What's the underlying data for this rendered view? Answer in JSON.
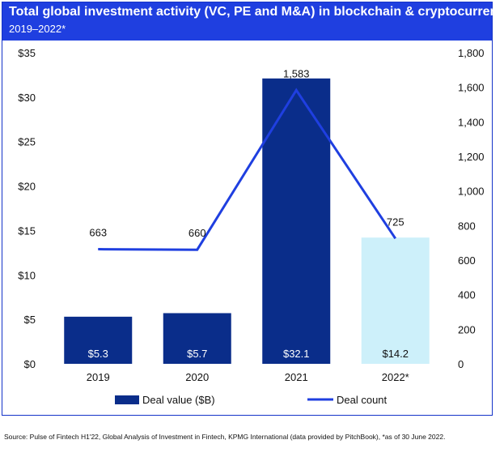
{
  "header": {
    "title": "Total global investment activity (VC, PE and M&A) in blockchain & cryptocurrency",
    "subtitle": "2019–2022*"
  },
  "source": "Source: Pulse of Fintech H1'22, Global Analysis of Investment in Fintech, KPMG International (data provided by PitchBook), *as of 30 June 2022.",
  "colors": {
    "header_bg": "#1f3fe0",
    "bar_main": "#0a2d8a",
    "bar_highlight": "#cdf0fa",
    "line": "#1f3fe0"
  },
  "chart_data": {
    "type": "bar+line",
    "categories": [
      "2019",
      "2020",
      "2021",
      "2022*"
    ],
    "series": [
      {
        "name": "Deal value ($B)",
        "type": "bar",
        "axis": "left",
        "values": [
          5.3,
          5.7,
          32.1,
          14.2
        ],
        "labels": [
          "$5.3",
          "$5.7",
          "$32.1",
          "$14.2"
        ]
      },
      {
        "name": "Deal count",
        "type": "line",
        "axis": "right",
        "values": [
          663,
          660,
          1583,
          725
        ],
        "labels": [
          "663",
          "660",
          "1,583",
          "725"
        ]
      }
    ],
    "left_axis": {
      "ylim": [
        0,
        35
      ],
      "ticks": [
        "$0",
        "$5",
        "$10",
        "$15",
        "$20",
        "$25",
        "$30",
        "$35"
      ]
    },
    "right_axis": {
      "ylim": [
        0,
        1800
      ],
      "ticks": [
        "0",
        "200",
        "400",
        "600",
        "800",
        "1,000",
        "1,200",
        "1,400",
        "1,600",
        "1,800"
      ]
    },
    "grid": false,
    "legend": "bottom"
  }
}
